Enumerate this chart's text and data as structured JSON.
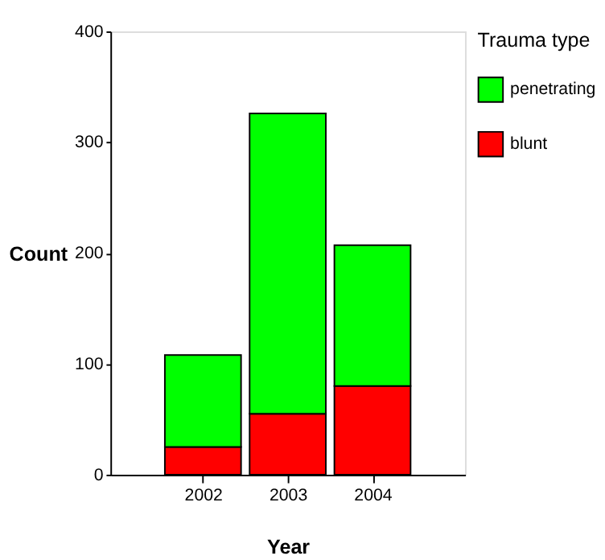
{
  "chart_data": {
    "type": "bar",
    "stacked": true,
    "xlabel": "Year",
    "ylabel": "Count",
    "legend_title": "Trauma type",
    "legend": "right",
    "grid": false,
    "categories": [
      "2002",
      "2003",
      "2004"
    ],
    "series": [
      {
        "name": "blunt",
        "color": "#ff0000",
        "values": [
          25,
          55,
          80
        ]
      },
      {
        "name": "penetrating",
        "color": "#00ff00",
        "values": [
          83,
          271,
          127
        ]
      }
    ],
    "ylim": [
      0,
      400
    ],
    "yticks": [
      0,
      100,
      200,
      300,
      400
    ]
  }
}
